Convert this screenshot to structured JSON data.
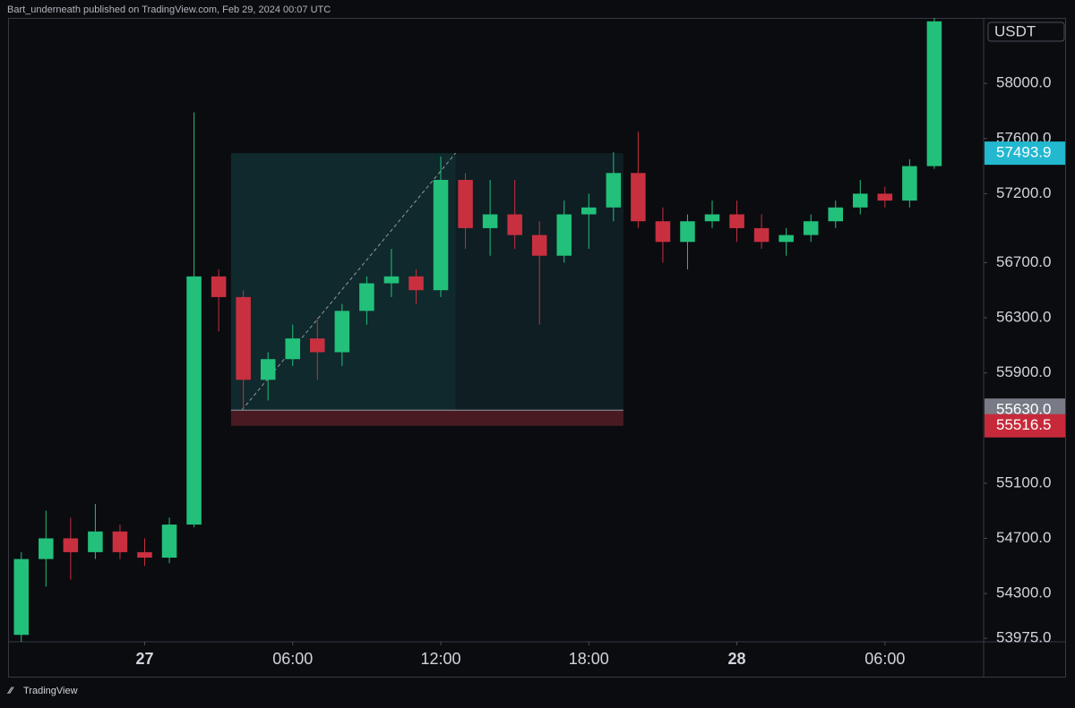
{
  "header": "Bart_underneath published on TradingView.com, Feb 29, 2024 00:07 UTC",
  "footer": "TradingView",
  "chart_data": {
    "type": "candlestick",
    "currency": "USDT",
    "up_color": "#22c07a",
    "down_color": "#c8303f",
    "x": [
      -5,
      -4,
      -3,
      -2,
      -1,
      0,
      1,
      2,
      3,
      4,
      5,
      6,
      7,
      8,
      9,
      10,
      11,
      12,
      13,
      14,
      15,
      16,
      17,
      18,
      19,
      20,
      21,
      22,
      23,
      24,
      25,
      26,
      27,
      28,
      29,
      30,
      31,
      32
    ],
    "open": [
      54000,
      54550,
      54700,
      54600,
      54750,
      54600,
      54560,
      54800,
      56600,
      56450,
      55850,
      56000,
      56150,
      56050,
      56350,
      56550,
      56600,
      56500,
      57300,
      56950,
      57050,
      56900,
      56750,
      57050,
      57100,
      57350,
      57000,
      56850,
      57000,
      57050,
      56950,
      56850,
      56900,
      57000,
      57100,
      57200,
      57150,
      57400
    ],
    "high": [
      54600,
      54900,
      54850,
      54950,
      54800,
      54700,
      54850,
      57790,
      56650,
      56500,
      56050,
      56250,
      56300,
      56400,
      56600,
      56800,
      56650,
      57470,
      57350,
      57300,
      57300,
      57000,
      57150,
      57200,
      57500,
      57650,
      57100,
      57050,
      57150,
      57150,
      57050,
      56950,
      57050,
      57150,
      57300,
      57250,
      57450,
      58475
    ],
    "low": [
      53950,
      54350,
      54400,
      54550,
      54550,
      54500,
      54520,
      54780,
      56200,
      55640,
      55700,
      55950,
      55850,
      55950,
      56250,
      56450,
      56400,
      56450,
      56800,
      56750,
      56800,
      56250,
      56700,
      56800,
      57000,
      56950,
      56700,
      56650,
      56950,
      56850,
      56800,
      56750,
      56850,
      56950,
      57050,
      57100,
      57100,
      57380
    ],
    "close": [
      54550,
      54700,
      54600,
      54750,
      54600,
      54560,
      54800,
      56600,
      56450,
      55850,
      56000,
      56150,
      56050,
      56350,
      56550,
      56600,
      56500,
      57300,
      56950,
      57050,
      56900,
      56750,
      57050,
      57100,
      57350,
      57000,
      56850,
      57000,
      57050,
      56950,
      56850,
      56900,
      57000,
      57100,
      57200,
      57150,
      57400,
      58450
    ],
    "xlim": [
      -5.5,
      34
    ],
    "xticks": [
      {
        "value": 0,
        "label": "27"
      },
      {
        "value": 6,
        "label": "06:00"
      },
      {
        "value": 12,
        "label": "12:00"
      },
      {
        "value": 18,
        "label": "18:00"
      },
      {
        "value": 24,
        "label": "28"
      },
      {
        "value": 30,
        "label": "06:00"
      }
    ],
    "ylim": [
      53950,
      58475
    ],
    "yticks": [
      {
        "value": 58000,
        "label": "58000.0"
      },
      {
        "value": 57600,
        "label": "57600.0"
      },
      {
        "value": 57200,
        "label": "57200.0"
      },
      {
        "value": 56700,
        "label": "56700.0"
      },
      {
        "value": 56300,
        "label": "56300.0"
      },
      {
        "value": 55900,
        "label": "55900.0"
      },
      {
        "value": 55100,
        "label": "55100.0"
      },
      {
        "value": 54700,
        "label": "54700.0"
      },
      {
        "value": 54300,
        "label": "54300.0"
      },
      {
        "value": 53975,
        "label": "53975.0"
      }
    ],
    "position": {
      "start": 3.5,
      "split": 12.6,
      "end": 19.4,
      "target": {
        "value": 57493.9,
        "label": "57493.9",
        "color": "#22b8cf"
      },
      "entry": {
        "value": 55630,
        "label": "55630.0",
        "color": "#787b86"
      },
      "stop": {
        "value": 55516.5,
        "label": "55516.5",
        "color": "#c62a3a"
      }
    }
  }
}
